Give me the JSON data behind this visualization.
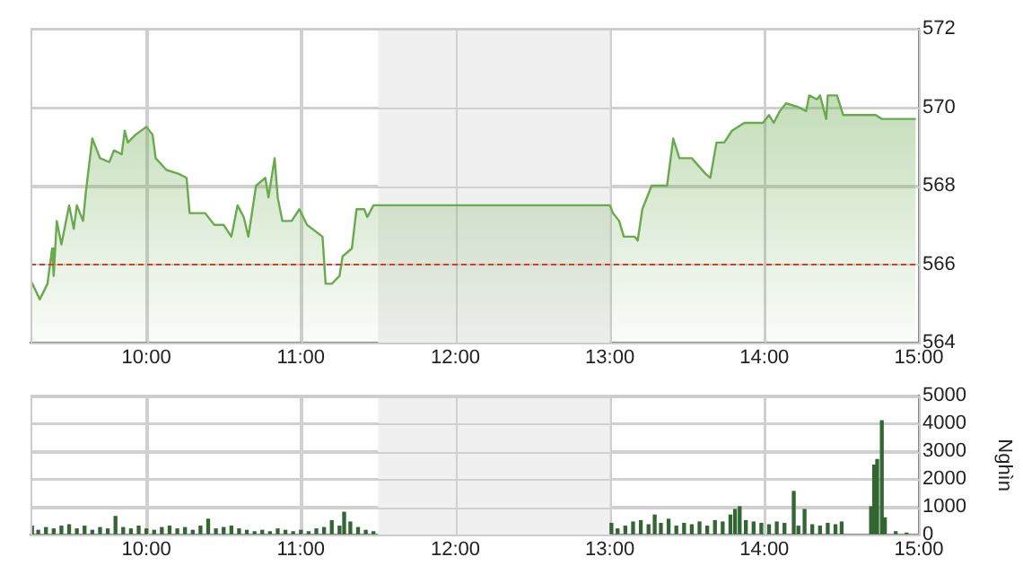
{
  "chart_data": [
    {
      "type": "area",
      "color": "#6aaa4e",
      "marker": "none",
      "grid": true,
      "legend": false,
      "x": [
        9.25,
        9.31,
        9.36,
        9.39,
        9.4,
        9.42,
        9.45,
        9.5,
        9.53,
        9.55,
        9.59,
        9.61,
        9.65,
        9.7,
        9.76,
        9.79,
        9.84,
        9.86,
        9.88,
        9.93,
        10.0,
        10.04,
        10.06,
        10.13,
        10.21,
        10.26,
        10.28,
        10.38,
        10.44,
        10.5,
        10.55,
        10.59,
        10.63,
        10.66,
        10.71,
        10.77,
        10.79,
        10.83,
        10.85,
        10.88,
        10.94,
        10.99,
        11.04,
        11.14,
        11.16,
        11.2,
        11.25,
        11.27,
        11.33,
        11.36,
        11.41,
        11.43,
        11.47,
        11.5,
        13.0,
        13.02,
        13.06,
        13.09,
        13.16,
        13.18,
        13.21,
        13.27,
        13.37,
        13.41,
        13.45,
        13.53,
        13.62,
        13.65,
        13.69,
        13.74,
        13.79,
        13.87,
        13.99,
        14.03,
        14.06,
        14.1,
        14.14,
        14.22,
        14.27,
        14.29,
        14.34,
        14.36,
        14.4,
        14.41,
        14.47,
        14.51,
        14.72,
        14.76,
        14.98
      ],
      "values": [
        565.6,
        565.1,
        565.5,
        566.4,
        565.7,
        567.1,
        566.5,
        567.5,
        566.9,
        567.5,
        567.1,
        567.9,
        569.2,
        568.7,
        568.6,
        568.9,
        568.8,
        569.4,
        569.1,
        569.3,
        569.5,
        569.3,
        568.7,
        568.4,
        568.3,
        568.2,
        567.3,
        567.3,
        567.0,
        567.0,
        566.7,
        567.5,
        567.2,
        566.7,
        568.0,
        568.2,
        567.7,
        568.7,
        567.7,
        567.1,
        567.1,
        567.4,
        567.0,
        566.7,
        565.5,
        565.5,
        565.7,
        566.2,
        566.4,
        567.4,
        567.4,
        567.2,
        567.5,
        567.5,
        567.5,
        567.3,
        567.1,
        566.7,
        566.7,
        566.6,
        567.4,
        568.0,
        568.0,
        569.2,
        568.7,
        568.7,
        568.3,
        568.2,
        569.1,
        569.1,
        569.4,
        569.6,
        569.6,
        569.8,
        569.6,
        569.9,
        570.1,
        570.0,
        569.9,
        570.3,
        570.2,
        570.3,
        569.7,
        570.3,
        570.3,
        569.8,
        569.8,
        569.7,
        569.7
      ],
      "xlim": [
        9.25,
        15
      ],
      "xticks": [
        {
          "value": 10,
          "label": "10:00"
        },
        {
          "value": 11,
          "label": "11:00"
        },
        {
          "value": 12,
          "label": "12:00"
        },
        {
          "value": 13,
          "label": "13:00"
        },
        {
          "value": 14,
          "label": "14:00"
        },
        {
          "value": 15,
          "label": "15:00"
        }
      ],
      "ylim": [
        564,
        572
      ],
      "yticks": [
        564,
        566,
        568,
        570,
        572
      ],
      "ref_lines": [
        {
          "axis": "y",
          "value": 566,
          "color": "#d04030",
          "line_style": "dashed"
        }
      ],
      "bands": [
        {
          "axis": "x",
          "from": 11.5,
          "to": 13,
          "color": "#f0f0f0"
        }
      ]
    },
    {
      "type": "bar",
      "color": "#336633",
      "grid": true,
      "legend": false,
      "ylabel": "Nghìn",
      "x": [
        9.26,
        9.3,
        9.35,
        9.4,
        9.45,
        9.5,
        9.55,
        9.6,
        9.65,
        9.7,
        9.75,
        9.8,
        9.85,
        9.9,
        9.95,
        10.0,
        10.05,
        10.1,
        10.15,
        10.2,
        10.25,
        10.3,
        10.35,
        10.4,
        10.45,
        10.5,
        10.55,
        10.6,
        10.65,
        10.7,
        10.75,
        10.8,
        10.85,
        10.9,
        10.95,
        11.0,
        11.05,
        11.1,
        11.15,
        11.2,
        11.25,
        11.28,
        11.32,
        11.37,
        11.42,
        11.47,
        13.01,
        13.05,
        13.1,
        13.15,
        13.2,
        13.25,
        13.29,
        13.33,
        13.38,
        13.43,
        13.48,
        13.53,
        13.58,
        13.63,
        13.68,
        13.73,
        13.78,
        13.81,
        13.84,
        13.88,
        13.93,
        13.98,
        14.03,
        14.08,
        14.13,
        14.19,
        14.22,
        14.26,
        14.31,
        14.36,
        14.41,
        14.46,
        14.5,
        14.69,
        14.71,
        14.73,
        14.76,
        14.78,
        14.85,
        14.92
      ],
      "values": [
        300,
        150,
        250,
        200,
        300,
        350,
        200,
        300,
        150,
        250,
        200,
        650,
        250,
        200,
        300,
        200,
        150,
        250,
        300,
        200,
        250,
        150,
        300,
        550,
        200,
        250,
        300,
        200,
        150,
        100,
        150,
        100,
        200,
        150,
        100,
        150,
        100,
        200,
        250,
        500,
        300,
        800,
        450,
        250,
        150,
        100,
        400,
        200,
        300,
        450,
        500,
        350,
        700,
        400,
        550,
        300,
        400,
        350,
        450,
        300,
        500,
        450,
        700,
        900,
        1000,
        500,
        450,
        400,
        350,
        450,
        400,
        1550,
        300,
        900,
        350,
        300,
        400,
        350,
        450,
        1000,
        2500,
        2700,
        4100,
        600,
        100,
        50
      ],
      "xlim": [
        9.25,
        15
      ],
      "xticks": [
        {
          "value": 10,
          "label": "10:00"
        },
        {
          "value": 11,
          "label": "11:00"
        },
        {
          "value": 12,
          "label": "12:00"
        },
        {
          "value": 13,
          "label": "13:00"
        },
        {
          "value": 14,
          "label": "14:00"
        },
        {
          "value": 15,
          "label": "15:00"
        }
      ],
      "ylim": [
        0,
        5000
      ],
      "yticks": [
        0,
        1000,
        2000,
        3000,
        4000,
        5000
      ],
      "bands": [
        {
          "axis": "x",
          "from": 11.5,
          "to": 13,
          "color": "#f0f0f0"
        }
      ]
    }
  ]
}
